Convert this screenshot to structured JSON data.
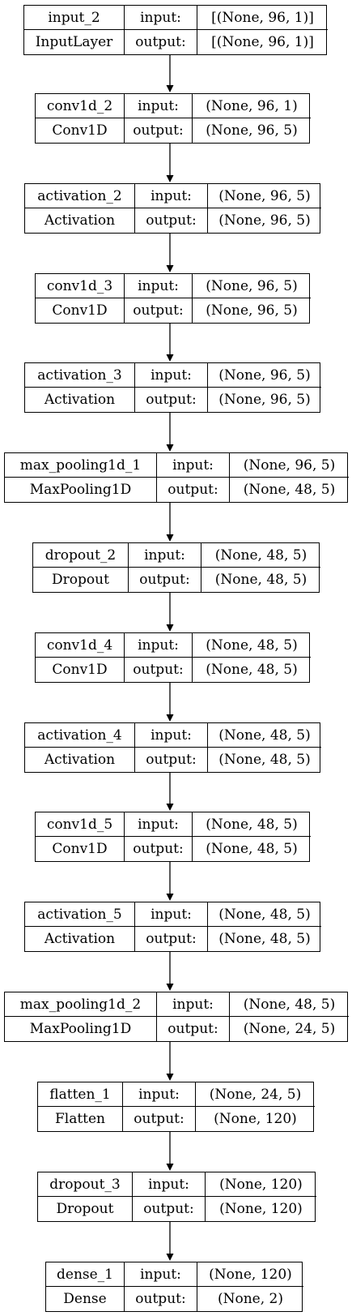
{
  "layers": [
    {
      "name": "input_2",
      "type": "InputLayer",
      "input_label": "input:",
      "output_label": "output:",
      "input_shape": "[(None, 96, 1)]",
      "output_shape": "[(None, 96, 1)]"
    },
    {
      "name": "conv1d_2",
      "type": "Conv1D",
      "input_label": "input:",
      "output_label": "output:",
      "input_shape": "(None, 96, 1)",
      "output_shape": "(None, 96, 5)"
    },
    {
      "name": "activation_2",
      "type": "Activation",
      "input_label": "input:",
      "output_label": "output:",
      "input_shape": "(None, 96, 5)",
      "output_shape": "(None, 96, 5)"
    },
    {
      "name": "conv1d_3",
      "type": "Conv1D",
      "input_label": "input:",
      "output_label": "output:",
      "input_shape": "(None, 96, 5)",
      "output_shape": "(None, 96, 5)"
    },
    {
      "name": "activation_3",
      "type": "Activation",
      "input_label": "input:",
      "output_label": "output:",
      "input_shape": "(None, 96, 5)",
      "output_shape": "(None, 96, 5)"
    },
    {
      "name": "max_pooling1d_1",
      "type": "MaxPooling1D",
      "input_label": "input:",
      "output_label": "output:",
      "input_shape": "(None, 96, 5)",
      "output_shape": "(None, 48, 5)"
    },
    {
      "name": "dropout_2",
      "type": "Dropout",
      "input_label": "input:",
      "output_label": "output:",
      "input_shape": "(None, 48, 5)",
      "output_shape": "(None, 48, 5)"
    },
    {
      "name": "conv1d_4",
      "type": "Conv1D",
      "input_label": "input:",
      "output_label": "output:",
      "input_shape": "(None, 48, 5)",
      "output_shape": "(None, 48, 5)"
    },
    {
      "name": "activation_4",
      "type": "Activation",
      "input_label": "input:",
      "output_label": "output:",
      "input_shape": "(None, 48, 5)",
      "output_shape": "(None, 48, 5)"
    },
    {
      "name": "conv1d_5",
      "type": "Conv1D",
      "input_label": "input:",
      "output_label": "output:",
      "input_shape": "(None, 48, 5)",
      "output_shape": "(None, 48, 5)"
    },
    {
      "name": "activation_5",
      "type": "Activation",
      "input_label": "input:",
      "output_label": "output:",
      "input_shape": "(None, 48, 5)",
      "output_shape": "(None, 48, 5)"
    },
    {
      "name": "max_pooling1d_2",
      "type": "MaxPooling1D",
      "input_label": "input:",
      "output_label": "output:",
      "input_shape": "(None, 48, 5)",
      "output_shape": "(None, 24, 5)"
    },
    {
      "name": "flatten_1",
      "type": "Flatten",
      "input_label": "input:",
      "output_label": "output:",
      "input_shape": "(None, 24, 5)",
      "output_shape": "(None, 120)"
    },
    {
      "name": "dropout_3",
      "type": "Dropout",
      "input_label": "input:",
      "output_label": "output:",
      "input_shape": "(None, 120)",
      "output_shape": "(None, 120)"
    },
    {
      "name": "dense_1",
      "type": "Dense",
      "input_label": "input:",
      "output_label": "output:",
      "input_shape": "(None, 120)",
      "output_shape": "(None, 2)"
    }
  ]
}
